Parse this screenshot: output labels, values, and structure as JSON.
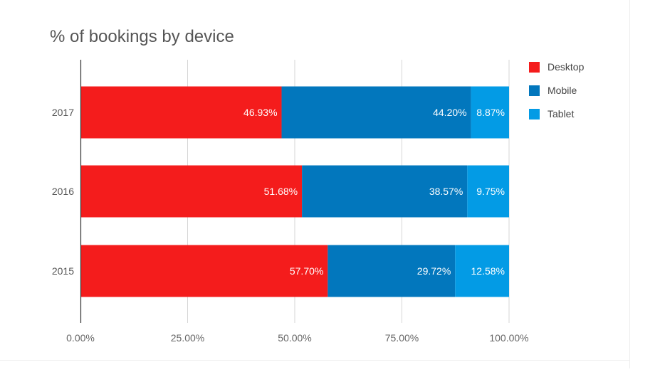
{
  "chart_data": {
    "type": "bar",
    "orientation": "horizontal",
    "stacked": true,
    "title": "% of bookings by device",
    "categories": [
      "2017",
      "2016",
      "2015"
    ],
    "series": [
      {
        "name": "Desktop",
        "color": "#f41c1c",
        "values": [
          46.93,
          51.68,
          57.7
        ],
        "labels": [
          "46.93%",
          "51.68%",
          "57.70%"
        ]
      },
      {
        "name": "Mobile",
        "color": "#0277bd",
        "values": [
          44.2,
          38.57,
          29.72
        ],
        "labels": [
          "44.20%",
          "38.57%",
          "29.72%"
        ]
      },
      {
        "name": "Tablet",
        "color": "#039be5",
        "values": [
          8.87,
          9.75,
          12.58
        ],
        "labels": [
          "8.87%",
          "9.75%",
          "12.58%"
        ]
      }
    ],
    "xlim": [
      0,
      100
    ],
    "x_ticks": [
      0,
      25,
      50,
      75,
      100
    ],
    "x_tick_labels": [
      "0.00%",
      "25.00%",
      "50.00%",
      "75.00%",
      "100.00%"
    ],
    "grid": true,
    "legend_position": "top-right"
  }
}
